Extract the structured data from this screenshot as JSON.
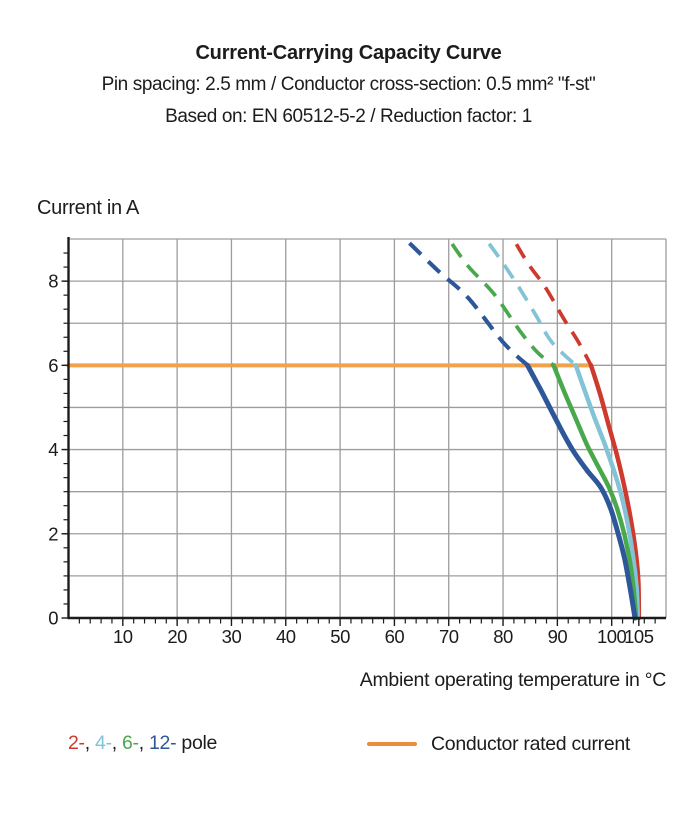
{
  "header": {
    "title": "Current-Carrying Capacity Curve",
    "subtitle1": "Pin spacing: 2.5 mm / Conductor cross-section: 0.5 mm² \"f-st\"",
    "subtitle2": "Based on: EN 60512-5-2 / Reduction factor: 1"
  },
  "chart": {
    "y_axis_title": "Current in A",
    "x_axis_title": "Ambient operating temperature in °C"
  },
  "chart_data": {
    "type": "line",
    "title": "Current-Carrying Capacity Curve",
    "xlabel": "Ambient operating temperature in °C",
    "ylabel": "Current in A",
    "xlim": [
      0,
      110
    ],
    "ylim": [
      0,
      9
    ],
    "x_ticks": [
      10,
      20,
      30,
      40,
      50,
      60,
      70,
      80,
      90,
      100,
      105
    ],
    "y_ticks": [
      0,
      2,
      4,
      6,
      8
    ],
    "grid": {
      "x_step": 10,
      "y_step": 1,
      "color": "#9d9d9d"
    },
    "axis_color": "#1c1c1c",
    "rated_current": {
      "label": "Conductor rated current",
      "value": 6,
      "x_start": 0,
      "x_end": 96.2,
      "color": "#f1a24a"
    },
    "series": [
      {
        "name": "2-pole",
        "color": "#cf3a2e",
        "width": 4.5,
        "dashed": [
          [
            81.9,
            9
          ],
          [
            84.7,
            8.4
          ],
          [
            87.8,
            7.85
          ],
          [
            91.2,
            7.1
          ],
          [
            93.9,
            6.55
          ],
          [
            96.2,
            6
          ]
        ],
        "solid": [
          [
            96.2,
            6
          ],
          [
            97.9,
            5.3
          ],
          [
            99.4,
            4.6
          ],
          [
            100.9,
            3.9
          ],
          [
            102.2,
            3.2
          ],
          [
            103.3,
            2.5
          ],
          [
            104.3,
            1.7
          ],
          [
            104.9,
            0.9
          ],
          [
            105.0,
            0
          ]
        ]
      },
      {
        "name": "4-pole",
        "color": "#82c3d5",
        "width": 4.5,
        "dashed": [
          [
            76.8,
            9
          ],
          [
            79.6,
            8.5
          ],
          [
            82.7,
            7.9
          ],
          [
            86,
            7.2
          ],
          [
            89,
            6.55
          ],
          [
            93.4,
            6
          ]
        ],
        "solid": [
          [
            93.4,
            6
          ],
          [
            95.3,
            5.3
          ],
          [
            97,
            4.7
          ],
          [
            98.8,
            4.1
          ],
          [
            100.4,
            3.5
          ],
          [
            101.8,
            2.9
          ],
          [
            103,
            2.2
          ],
          [
            104,
            1.4
          ],
          [
            104.6,
            0.7
          ],
          [
            104.8,
            0
          ]
        ]
      },
      {
        "name": "6-pole",
        "color": "#49a84c",
        "width": 4.5,
        "dashed": [
          [
            70,
            9
          ],
          [
            73.6,
            8.35
          ],
          [
            78.3,
            7.7
          ],
          [
            83.2,
            6.8
          ],
          [
            86.4,
            6.3
          ],
          [
            89.3,
            6
          ]
        ],
        "solid": [
          [
            89.3,
            6
          ],
          [
            91.5,
            5.3
          ],
          [
            93.5,
            4.7
          ],
          [
            95.5,
            4.1
          ],
          [
            97.5,
            3.6
          ],
          [
            99.5,
            3.1
          ],
          [
            101,
            2.6
          ],
          [
            102.3,
            2.0
          ],
          [
            103.4,
            1.3
          ],
          [
            104.1,
            0.6
          ],
          [
            104.5,
            0
          ]
        ]
      },
      {
        "name": "12-pole",
        "color": "#2e5799",
        "width": 5,
        "dashed": [
          [
            62,
            9
          ],
          [
            68,
            8.25
          ],
          [
            73.6,
            7.6
          ],
          [
            80,
            6.55
          ],
          [
            84.5,
            6
          ]
        ],
        "solid": [
          [
            84.5,
            6
          ],
          [
            87,
            5.4
          ],
          [
            89,
            4.9
          ],
          [
            91,
            4.4
          ],
          [
            93,
            3.95
          ],
          [
            95.5,
            3.5
          ],
          [
            98,
            3.1
          ],
          [
            99.8,
            2.6
          ],
          [
            101.2,
            2.0
          ],
          [
            102.4,
            1.4
          ],
          [
            103.4,
            0.7
          ],
          [
            104.3,
            0
          ]
        ]
      }
    ],
    "legend_position": "bottom"
  },
  "legend": {
    "pole_segments": [
      {
        "text": "2-",
        "color": "#cf3a2e"
      },
      {
        "text": ", ",
        "color": "#1c1c1c"
      },
      {
        "text": "4-",
        "color": "#82c3d5"
      },
      {
        "text": ", ",
        "color": "#1c1c1c"
      },
      {
        "text": "6-",
        "color": "#49a84c"
      },
      {
        "text": ", ",
        "color": "#1c1c1c"
      },
      {
        "text": "12-",
        "color": "#2e5799"
      },
      {
        "text": " pole",
        "color": "#1c1c1c"
      }
    ],
    "rated_label": "Conductor rated current",
    "rated_color": "#ea8c3c"
  }
}
